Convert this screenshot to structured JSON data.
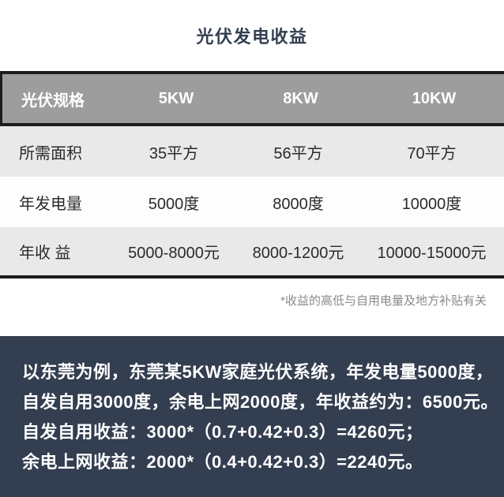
{
  "title": "光伏发电收益",
  "table": {
    "header": [
      "光伏规格",
      "5KW",
      "8KW",
      "10KW"
    ],
    "rows": [
      {
        "label": "所需面积",
        "values": [
          "35平方",
          "56平方",
          "70平方"
        ]
      },
      {
        "label": "年发电量",
        "values": [
          "5000度",
          "8000度",
          "10000度"
        ]
      },
      {
        "label": "年收 益",
        "values": [
          "5000-8000元",
          "8000-1200元",
          "10000-15000元"
        ]
      }
    ]
  },
  "footnote": "*收益的高低与自用电量及地方补贴有关",
  "example": {
    "lines": [
      "以东莞为例，东莞某5KW家庭光伏系统，年发电量5000度，",
      "自发自用3000度，余电上网2000度，年收益约为：6500元。",
      "自发自用收益：3000*（0.7+0.42+0.3）=4260元；",
      "余电上网收益：2000*（0.4+0.42+0.3）=2240元。"
    ]
  },
  "colors": {
    "title_text": "#343f51",
    "header_bg": "#9d9d9d",
    "header_text": "#ffffff",
    "row_alt_bg": "#e9e9e9",
    "row_white_bg": "#fdfdfd",
    "table_border": "#1c1c1c",
    "footnote_text": "#8a8a8a",
    "panel_bg": "#333e50",
    "panel_text": "#ffffff"
  },
  "chart_data": {
    "type": "table",
    "title": "光伏发电收益",
    "columns": [
      "光伏规格",
      "5KW",
      "8KW",
      "10KW"
    ],
    "rows": [
      [
        "所需面积",
        "35平方",
        "56平方",
        "70平方"
      ],
      [
        "年发电量",
        "5000度",
        "8000度",
        "10000度"
      ],
      [
        "年收益",
        "5000-8000元",
        "8000-1200元",
        "10000-15000元"
      ]
    ],
    "footnote": "*收益的高低与自用电量及地方补贴有关",
    "annotations": [
      "以东莞为例，东莞某5KW家庭光伏系统，年发电量5000度，",
      "自发自用3000度，余电上网2000度，年收益约为：6500元。",
      "自发自用收益：3000*（0.7+0.42+0.3）=4260元；",
      "余电上网收益：2000*（0.4+0.42+0.3）=2240元。"
    ]
  }
}
